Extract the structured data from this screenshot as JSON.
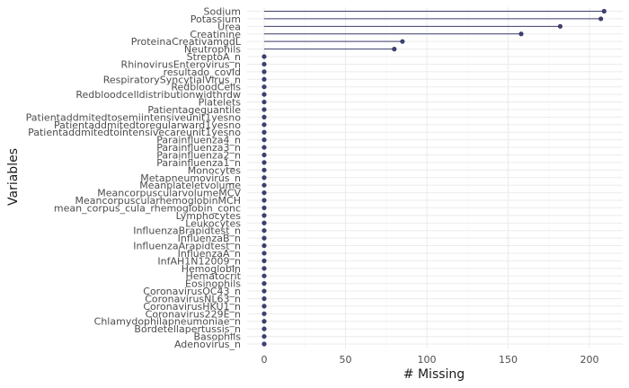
{
  "chart_data": {
    "type": "lollipop",
    "orientation": "horizontal",
    "xlabel": "# Missing",
    "ylabel": "Variables",
    "xlim": [
      0,
      210
    ],
    "x_ticks": [
      0,
      50,
      100,
      150,
      200
    ],
    "grid": true,
    "colors": {
      "series": "#3d3f6e",
      "grid": "#ebebeb"
    },
    "categories": [
      "Sodium",
      "Potassium",
      "Urea",
      "Creatinine",
      "ProteinaCreativamgdL",
      "Neutrophils",
      "StreptoA_n",
      "RhinovirusEnterovirus_n",
      "resultado_covid",
      "RespiratorySyncytialVirus_n",
      "RedbloodCells",
      "Redbloodcelldistributionwidthrdw",
      "Platelets",
      "Patientageguantile",
      "Patientaddmitedtosemiintensiveunit1yesno",
      "Patientaddmitedtoregularward1yesno",
      "Patientaddmitedtointensivecareunit1yesno",
      "Parainfluenza4_n",
      "Parainfluenza3_n",
      "Parainfluenza2_n",
      "Parainfluenza1_n",
      "Monocytes",
      "Metapneumovirus_n",
      "Meanplateletvolume",
      "MeancorpuscularvolumeMCV",
      "MeancorpuscularhemoglobinMCH",
      "mean_corpus_cula_rhemoglobin_conc",
      "Lymphocytes",
      "Leukocytes",
      "InfluenzaBrapidtest_n",
      "InfluenzaB_n",
      "InfluenzaArapidtest_n",
      "InfluenzaA_n",
      "InfAH1N12009_n",
      "Hemoglobin",
      "Hematocrit",
      "Eosinophils",
      "CoronavirusOC43_n",
      "CoronavirusNL63_n",
      "CoronavirusHKU1_n",
      "Coronavirus229E_n",
      "Chlamydophilapneumoniae_n",
      "Bordetellapertussis_n",
      "Basophils",
      "Adenovirus_n"
    ],
    "values": [
      209,
      207,
      182,
      158,
      85,
      80,
      0,
      0,
      0,
      0,
      0,
      0,
      0,
      0,
      0,
      0,
      0,
      0,
      0,
      0,
      0,
      0,
      0,
      0,
      0,
      0,
      0,
      0,
      0,
      0,
      0,
      0,
      0,
      0,
      0,
      0,
      0,
      0,
      0,
      0,
      0,
      0,
      0,
      0,
      0
    ]
  }
}
